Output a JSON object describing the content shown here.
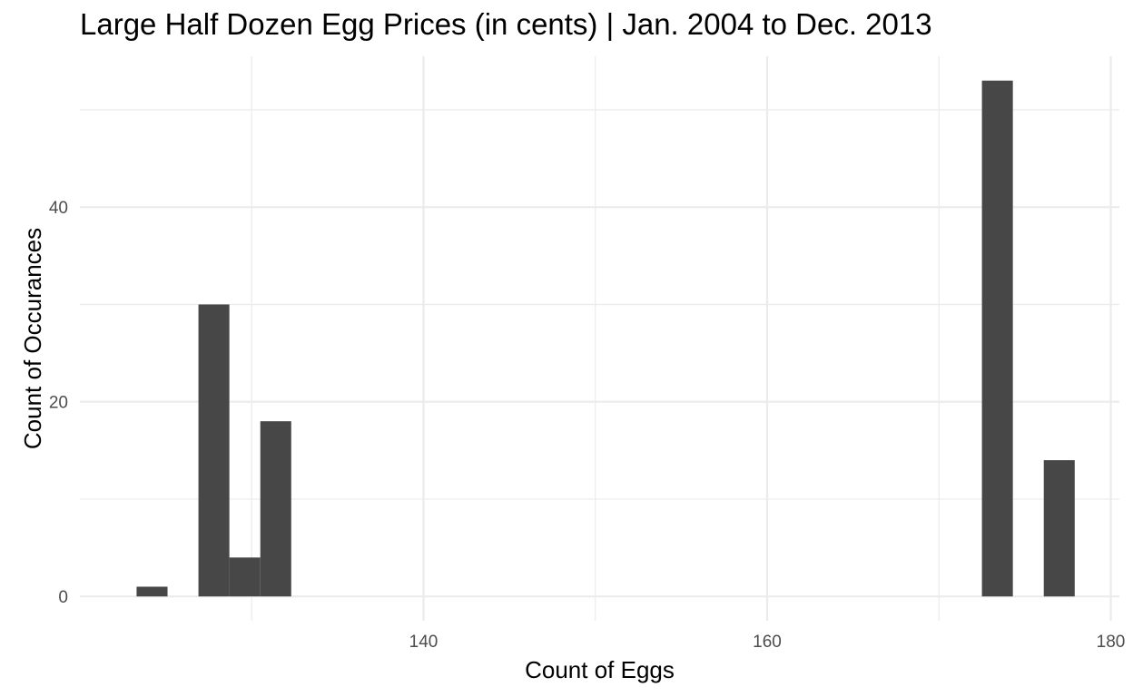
{
  "chart_data": {
    "type": "bar",
    "title": "Large Half Dozen Egg Prices (in cents) | Jan. 2004 to Dec. 2013",
    "xlabel": "Count of Eggs",
    "ylabel": "Count of Occurances",
    "xlim": [
      120,
      180.5
    ],
    "ylim": [
      -2.5,
      55.5
    ],
    "x_ticks": [
      140,
      160,
      180
    ],
    "x_tick_labels": [
      "140",
      "160",
      "180"
    ],
    "y_ticks": [
      0,
      20,
      40
    ],
    "y_tick_labels": [
      "0",
      "20",
      "40"
    ],
    "grid": true,
    "bin_width": 1.8,
    "bars": [
      {
        "x": 124.2,
        "count": 1
      },
      {
        "x": 127.8,
        "count": 30
      },
      {
        "x": 129.6,
        "count": 4
      },
      {
        "x": 131.4,
        "count": 18
      },
      {
        "x": 173.4,
        "count": 53
      },
      {
        "x": 177.0,
        "count": 14
      }
    ],
    "bar_color": "#474747",
    "grid_color": "#ebebeb"
  }
}
